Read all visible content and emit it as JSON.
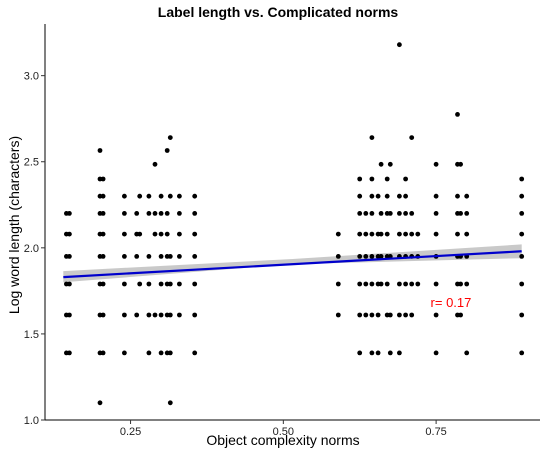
{
  "chart_data": {
    "type": "scatter",
    "title": "Label length vs. Complicated norms",
    "xlabel": "Object complexity norms",
    "ylabel": "Log word length (characters)",
    "xlim": [
      0.11,
      0.92
    ],
    "ylim": [
      1.0,
      3.3
    ],
    "x_ticks": [
      0.25,
      0.5,
      0.75
    ],
    "x_tick_labels": [
      "0.25",
      "0.50",
      "0.75"
    ],
    "y_ticks": [
      1.0,
      1.5,
      2.0,
      2.5,
      3.0
    ],
    "y_tick_labels": [
      "1.0",
      "1.5",
      "2.0",
      "2.5",
      "3.0"
    ],
    "grid": false,
    "colors": {
      "points": "#000000",
      "fit_line": "#0000cc",
      "ribbon": "#bfbfbf",
      "annotation": "#ff0000"
    },
    "fit_line": {
      "x": [
        0.14,
        0.89
      ],
      "y": [
        1.83,
        1.98
      ]
    },
    "ribbon": {
      "x": [
        0.14,
        0.515,
        0.89
      ],
      "lower": [
        1.8,
        1.905,
        1.94
      ],
      "upper": [
        1.865,
        1.935,
        2.02
      ]
    },
    "annotation": {
      "text": "r= 0.17",
      "x": 0.79,
      "y": 1.68
    },
    "points": [
      [
        0.145,
        2.2
      ],
      [
        0.145,
        2.08
      ],
      [
        0.145,
        1.95
      ],
      [
        0.145,
        1.79
      ],
      [
        0.145,
        1.61
      ],
      [
        0.145,
        1.39
      ],
      [
        0.15,
        2.2
      ],
      [
        0.15,
        2.08
      ],
      [
        0.15,
        1.95
      ],
      [
        0.15,
        1.79
      ],
      [
        0.15,
        1.61
      ],
      [
        0.15,
        1.39
      ],
      [
        0.2,
        2.565
      ],
      [
        0.2,
        2.4
      ],
      [
        0.2,
        2.3
      ],
      [
        0.2,
        2.2
      ],
      [
        0.2,
        2.08
      ],
      [
        0.2,
        1.95
      ],
      [
        0.2,
        1.79
      ],
      [
        0.2,
        1.61
      ],
      [
        0.2,
        1.39
      ],
      [
        0.2,
        1.1
      ],
      [
        0.205,
        2.4
      ],
      [
        0.205,
        2.3
      ],
      [
        0.205,
        2.2
      ],
      [
        0.205,
        2.08
      ],
      [
        0.205,
        1.95
      ],
      [
        0.205,
        1.79
      ],
      [
        0.205,
        1.61
      ],
      [
        0.205,
        1.39
      ],
      [
        0.24,
        2.3
      ],
      [
        0.24,
        2.2
      ],
      [
        0.24,
        2.08
      ],
      [
        0.24,
        1.95
      ],
      [
        0.24,
        1.79
      ],
      [
        0.24,
        1.61
      ],
      [
        0.24,
        1.39
      ],
      [
        0.26,
        2.2
      ],
      [
        0.26,
        2.08
      ],
      [
        0.26,
        1.95
      ],
      [
        0.26,
        1.61
      ],
      [
        0.265,
        2.3
      ],
      [
        0.265,
        2.08
      ],
      [
        0.265,
        1.79
      ],
      [
        0.28,
        2.3
      ],
      [
        0.28,
        2.2
      ],
      [
        0.28,
        1.95
      ],
      [
        0.28,
        1.79
      ],
      [
        0.28,
        1.61
      ],
      [
        0.28,
        1.39
      ],
      [
        0.29,
        2.485
      ],
      [
        0.29,
        2.2
      ],
      [
        0.29,
        2.08
      ],
      [
        0.29,
        1.61
      ],
      [
        0.3,
        2.3
      ],
      [
        0.3,
        2.2
      ],
      [
        0.3,
        2.08
      ],
      [
        0.3,
        1.95
      ],
      [
        0.3,
        1.79
      ],
      [
        0.3,
        1.61
      ],
      [
        0.3,
        1.39
      ],
      [
        0.31,
        2.565
      ],
      [
        0.31,
        2.2
      ],
      [
        0.31,
        2.08
      ],
      [
        0.31,
        1.95
      ],
      [
        0.31,
        1.79
      ],
      [
        0.31,
        1.61
      ],
      [
        0.31,
        1.39
      ],
      [
        0.315,
        2.64
      ],
      [
        0.315,
        2.3
      ],
      [
        0.315,
        1.95
      ],
      [
        0.315,
        1.79
      ],
      [
        0.315,
        1.61
      ],
      [
        0.315,
        1.39
      ],
      [
        0.315,
        1.1
      ],
      [
        0.33,
        2.3
      ],
      [
        0.33,
        2.2
      ],
      [
        0.33,
        2.08
      ],
      [
        0.33,
        1.95
      ],
      [
        0.33,
        1.79
      ],
      [
        0.33,
        1.61
      ],
      [
        0.355,
        2.3
      ],
      [
        0.355,
        2.2
      ],
      [
        0.355,
        2.08
      ],
      [
        0.355,
        1.95
      ],
      [
        0.355,
        1.79
      ],
      [
        0.355,
        1.61
      ],
      [
        0.355,
        1.39
      ],
      [
        0.59,
        2.08
      ],
      [
        0.59,
        1.95
      ],
      [
        0.59,
        1.79
      ],
      [
        0.59,
        1.61
      ],
      [
        0.625,
        2.4
      ],
      [
        0.625,
        2.3
      ],
      [
        0.625,
        2.2
      ],
      [
        0.625,
        2.08
      ],
      [
        0.625,
        1.95
      ],
      [
        0.625,
        1.79
      ],
      [
        0.625,
        1.61
      ],
      [
        0.625,
        1.39
      ],
      [
        0.635,
        2.2
      ],
      [
        0.635,
        2.08
      ],
      [
        0.635,
        1.95
      ],
      [
        0.635,
        1.79
      ],
      [
        0.635,
        1.61
      ],
      [
        0.645,
        2.64
      ],
      [
        0.645,
        2.4
      ],
      [
        0.645,
        2.3
      ],
      [
        0.645,
        2.2
      ],
      [
        0.645,
        2.08
      ],
      [
        0.645,
        1.95
      ],
      [
        0.645,
        1.79
      ],
      [
        0.645,
        1.61
      ],
      [
        0.645,
        1.39
      ],
      [
        0.655,
        2.3
      ],
      [
        0.655,
        2.08
      ],
      [
        0.655,
        1.95
      ],
      [
        0.655,
        1.79
      ],
      [
        0.655,
        1.61
      ],
      [
        0.655,
        1.39
      ],
      [
        0.66,
        2.485
      ],
      [
        0.66,
        2.2
      ],
      [
        0.66,
        2.08
      ],
      [
        0.66,
        1.95
      ],
      [
        0.66,
        1.79
      ],
      [
        0.67,
        2.4
      ],
      [
        0.67,
        2.3
      ],
      [
        0.67,
        2.2
      ],
      [
        0.67,
        2.08
      ],
      [
        0.67,
        1.95
      ],
      [
        0.67,
        1.79
      ],
      [
        0.67,
        1.61
      ],
      [
        0.675,
        2.485
      ],
      [
        0.675,
        2.2
      ],
      [
        0.675,
        1.95
      ],
      [
        0.675,
        1.61
      ],
      [
        0.675,
        1.39
      ],
      [
        0.69,
        3.18
      ],
      [
        0.69,
        2.3
      ],
      [
        0.69,
        2.2
      ],
      [
        0.69,
        2.08
      ],
      [
        0.69,
        1.95
      ],
      [
        0.69,
        1.79
      ],
      [
        0.69,
        1.61
      ],
      [
        0.69,
        1.39
      ],
      [
        0.7,
        2.4
      ],
      [
        0.7,
        2.3
      ],
      [
        0.7,
        2.2
      ],
      [
        0.7,
        2.08
      ],
      [
        0.7,
        1.95
      ],
      [
        0.7,
        1.79
      ],
      [
        0.7,
        1.61
      ],
      [
        0.71,
        2.64
      ],
      [
        0.71,
        2.2
      ],
      [
        0.71,
        2.08
      ],
      [
        0.71,
        1.95
      ],
      [
        0.71,
        1.79
      ],
      [
        0.71,
        1.61
      ],
      [
        0.72,
        2.08
      ],
      [
        0.72,
        1.95
      ],
      [
        0.72,
        1.79
      ],
      [
        0.75,
        2.485
      ],
      [
        0.75,
        2.3
      ],
      [
        0.75,
        2.2
      ],
      [
        0.75,
        2.08
      ],
      [
        0.75,
        1.95
      ],
      [
        0.75,
        1.79
      ],
      [
        0.75,
        1.61
      ],
      [
        0.75,
        1.39
      ],
      [
        0.785,
        2.775
      ],
      [
        0.785,
        2.485
      ],
      [
        0.785,
        2.3
      ],
      [
        0.785,
        2.2
      ],
      [
        0.785,
        2.08
      ],
      [
        0.785,
        1.95
      ],
      [
        0.785,
        1.79
      ],
      [
        0.785,
        1.61
      ],
      [
        0.79,
        2.485
      ],
      [
        0.79,
        2.2
      ],
      [
        0.79,
        1.95
      ],
      [
        0.79,
        1.79
      ],
      [
        0.79,
        1.61
      ],
      [
        0.8,
        2.3
      ],
      [
        0.8,
        2.2
      ],
      [
        0.8,
        2.08
      ],
      [
        0.8,
        1.95
      ],
      [
        0.8,
        1.79
      ],
      [
        0.8,
        1.39
      ],
      [
        0.89,
        2.4
      ],
      [
        0.89,
        2.3
      ],
      [
        0.89,
        2.2
      ],
      [
        0.89,
        2.08
      ],
      [
        0.89,
        1.95
      ],
      [
        0.89,
        1.79
      ],
      [
        0.89,
        1.61
      ],
      [
        0.89,
        1.39
      ]
    ]
  }
}
